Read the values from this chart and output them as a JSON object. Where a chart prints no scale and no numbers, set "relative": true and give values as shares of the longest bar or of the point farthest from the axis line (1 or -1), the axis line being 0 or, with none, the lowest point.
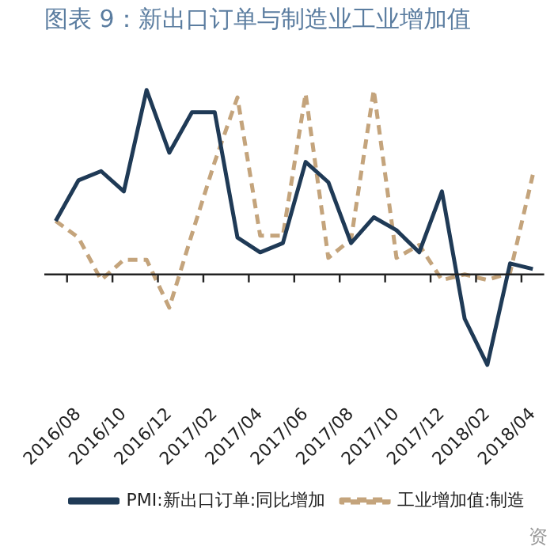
{
  "chart_data": {
    "type": "line",
    "title": "图表 9：新出口订单与制造业工业增加值",
    "relative": true,
    "categories": [
      null,
      "2016/08",
      null,
      "2016/10",
      null,
      "2016/12",
      null,
      "2017/02",
      null,
      "2017/04",
      null,
      "2017/06",
      null,
      "2017/08",
      null,
      "2017/10",
      null,
      "2017/12",
      null,
      "2018/02",
      null,
      "2018/04"
    ],
    "series": [
      {
        "name": "PMI:新出口订单:同比增加",
        "color": "#1f3a56",
        "line_style": "solid",
        "values": [
          0.29,
          0.51,
          0.56,
          0.45,
          1.0,
          0.66,
          0.88,
          0.88,
          0.2,
          0.12,
          0.17,
          0.61,
          0.5,
          0.17,
          0.31,
          0.24,
          0.12,
          0.45,
          -0.24,
          -0.49,
          0.06,
          0.03
        ]
      },
      {
        "name": "工业增加值:制造",
        "color": "#c4a47c",
        "line_style": "dashed",
        "values": [
          0.29,
          0.2,
          -0.03,
          0.08,
          0.08,
          -0.18,
          0.22,
          0.61,
          0.96,
          0.21,
          0.21,
          0.98,
          0.09,
          0.19,
          1.0,
          0.09,
          0.16,
          -0.03,
          0,
          -0.03,
          0.01,
          0.54
        ]
      }
    ],
    "legend": "bottom",
    "grid": false,
    "marker": "none",
    "annotations": [
      "资"
    ]
  }
}
